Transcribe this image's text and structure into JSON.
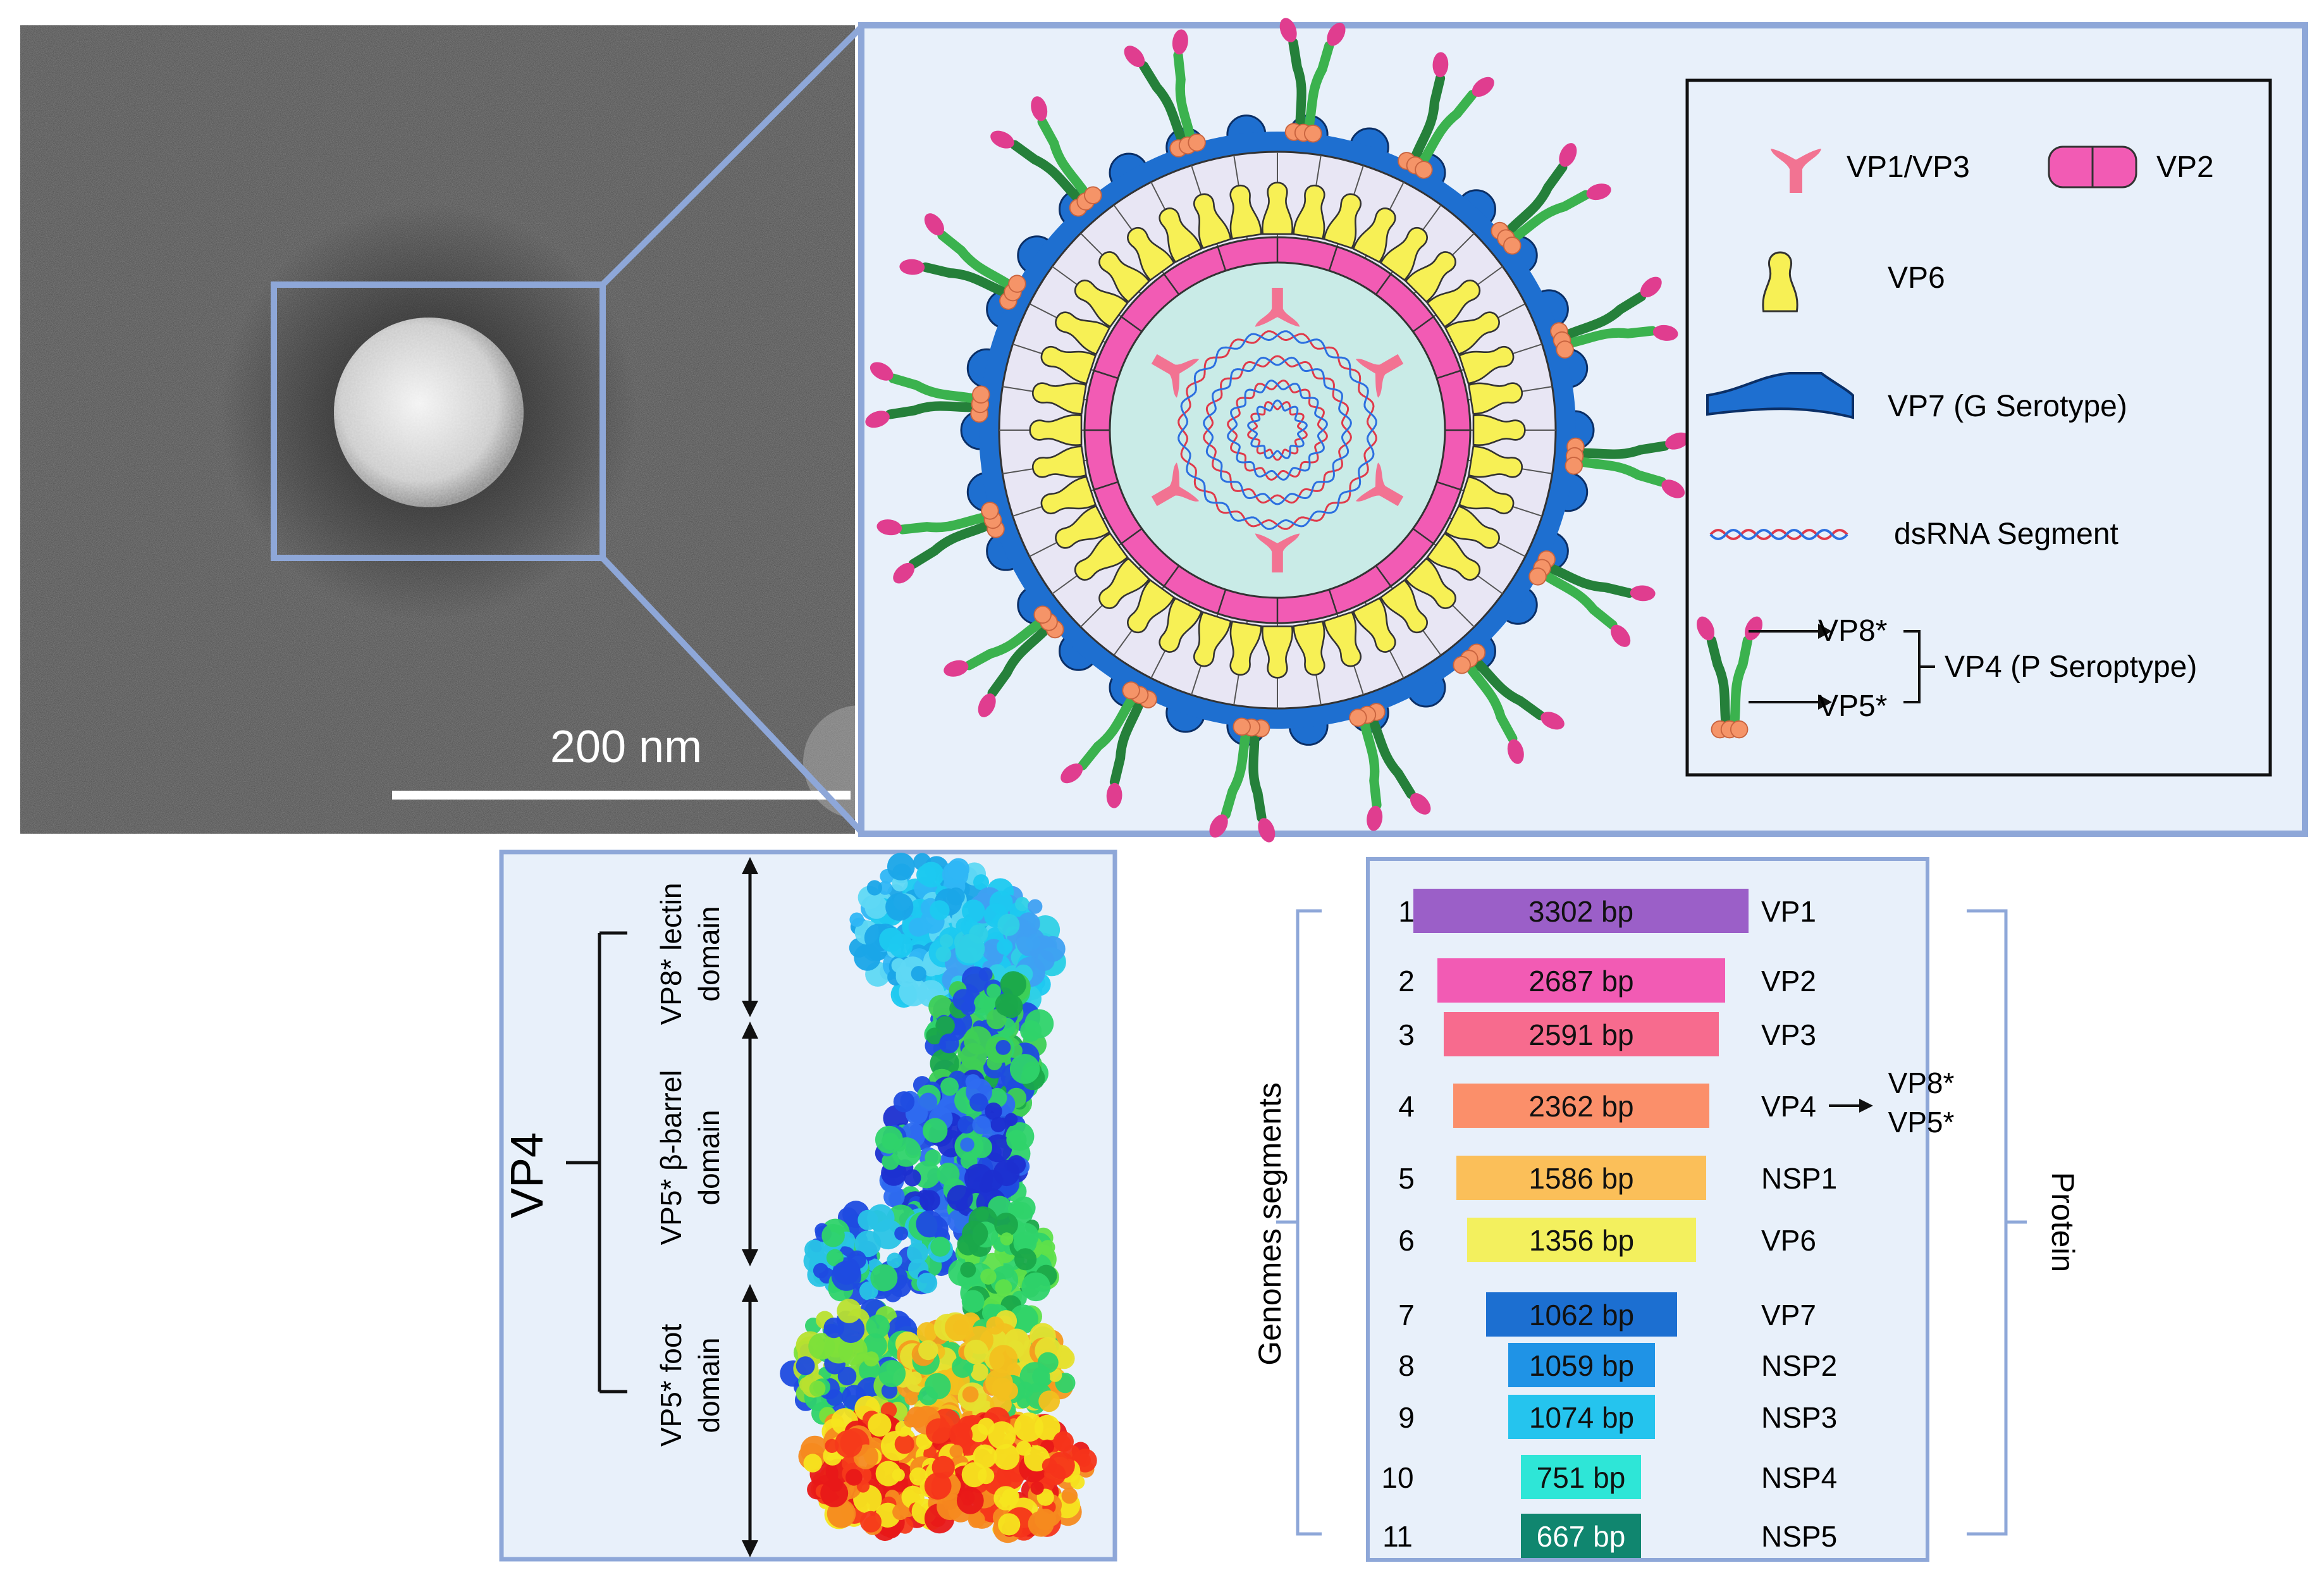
{
  "micrograph": {
    "scale_label": "200 nm"
  },
  "legend": {
    "vp1vp3": "VP1/VP3",
    "vp2": "VP2",
    "vp6": "VP6",
    "vp7": "VP7 (G Serotype)",
    "dsrna": "dsRNA Segment",
    "vp8": "VP8*",
    "vp5": "VP5*",
    "vp4": "VP4 (P Seroptype)"
  },
  "vp4_structure": {
    "main_label": "VP4",
    "domains": [
      {
        "line1": "VP8* lectin",
        "line2": "domain"
      },
      {
        "line1": "VP5* β-barrel",
        "line2": "domain"
      },
      {
        "line1": "VP5* foot",
        "line2": "domain"
      }
    ]
  },
  "genome": {
    "left_label": "Genomes segments",
    "right_label": "Protein",
    "vp4_products": [
      "VP8*",
      "VP5*"
    ],
    "segments": [
      {
        "num": "1",
        "bp": "3302 bp",
        "protein": "VP1",
        "color": "#9b5fc8"
      },
      {
        "num": "2",
        "bp": "2687 bp",
        "protein": "VP2",
        "color": "#f25bb4"
      },
      {
        "num": "3",
        "bp": "2591 bp",
        "protein": "VP3",
        "color": "#f76b8e"
      },
      {
        "num": "4",
        "bp": "2362 bp",
        "protein": "VP4",
        "color": "#fb8f6a"
      },
      {
        "num": "5",
        "bp": "1586 bp",
        "protein": "NSP1",
        "color": "#fbbf59"
      },
      {
        "num": "6",
        "bp": "1356 bp",
        "protein": "VP6",
        "color": "#f3f05e"
      },
      {
        "num": "7",
        "bp": "1062 bp",
        "protein": "VP7",
        "color": "#1c6fd1"
      },
      {
        "num": "8",
        "bp": "1059 bp",
        "protein": "NSP2",
        "color": "#1f93e6"
      },
      {
        "num": "9",
        "bp": "1074 bp",
        "protein": "NSP3",
        "color": "#25c4ee"
      },
      {
        "num": "10",
        "bp": "751 bp",
        "protein": "NSP4",
        "color": "#2ee6d7"
      },
      {
        "num": "11",
        "bp": "667 bp",
        "protein": "NSP5",
        "color": "#10866f"
      }
    ]
  }
}
